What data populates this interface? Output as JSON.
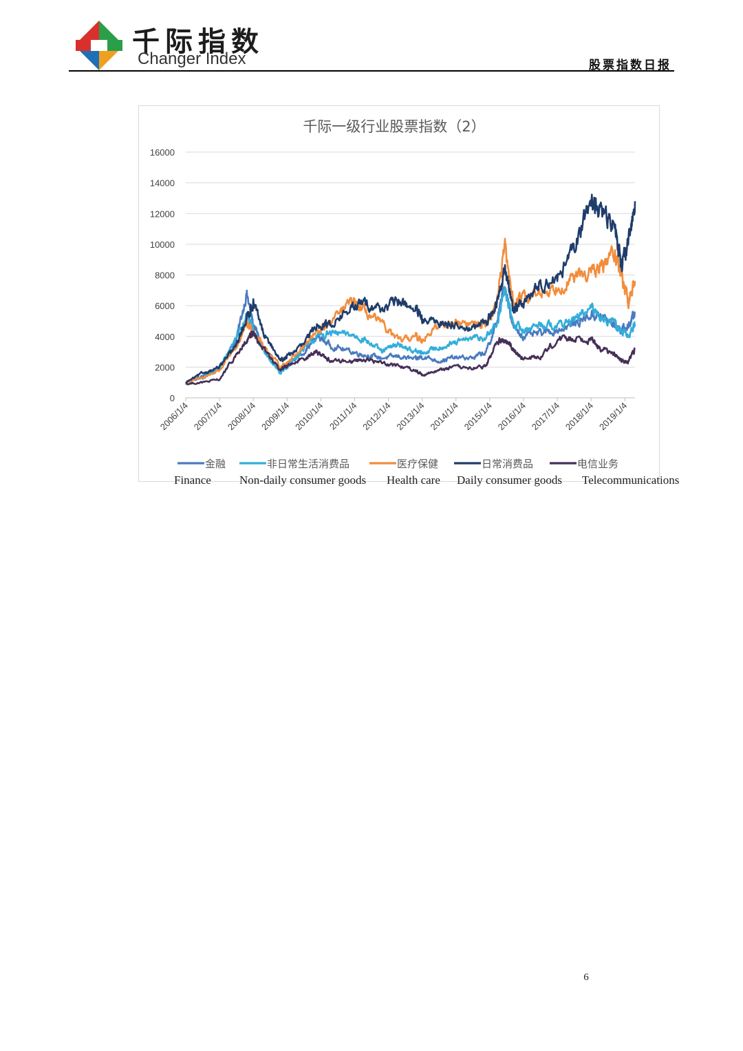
{
  "header": {
    "brand_cn": "千际指数",
    "brand_en": "Changer Index",
    "report_title": "股票指数日报",
    "logo_icon": "diamond-logo-icon",
    "logo_colors": [
      "#d9302c",
      "#2b9e4a",
      "#1f6fb5",
      "#f0a020"
    ]
  },
  "legend_en": [
    "Finance",
    "Non-daily consumer goods",
    "Health care",
    "Daily consumer goods",
    "Telecommunications"
  ],
  "page_number": "6",
  "chart_data": {
    "type": "line",
    "title": "千际一级行业股票指数（2）",
    "xlabel": "",
    "ylabel": "",
    "ylim": [
      0,
      16000
    ],
    "yticks": [
      0,
      2000,
      4000,
      6000,
      8000,
      10000,
      12000,
      14000,
      16000
    ],
    "x_start": 2006.0,
    "x_end": 2019.3,
    "x": [
      2006.0,
      2006.5,
      2007.0,
      2007.5,
      2007.8,
      2008.0,
      2008.3,
      2008.8,
      2009.0,
      2009.5,
      2009.9,
      2010.3,
      2010.9,
      2011.3,
      2011.8,
      2012.3,
      2012.8,
      2013.0,
      2013.5,
      2013.9,
      2014.5,
      2014.9,
      2015.2,
      2015.45,
      2015.7,
      2016.0,
      2016.5,
      2017.0,
      2017.5,
      2018.0,
      2018.3,
      2018.7,
      2018.9,
      2019.1,
      2019.3
    ],
    "x_tick_labels": [
      "2006/1/4",
      "2007/1/4",
      "2008/1/4",
      "2009/1/4",
      "2010/1/4",
      "2011/1/4",
      "2012/1/4",
      "2013/1/4",
      "2014/1/4",
      "2015/1/4",
      "2016/1/4",
      "2017/1/4",
      "2018/1/4",
      "2019/1/4"
    ],
    "x_tick_values": [
      2006.0,
      2007.0,
      2008.0,
      2009.0,
      2010.0,
      2011.0,
      2012.0,
      2013.0,
      2014.0,
      2015.0,
      2016.0,
      2017.0,
      2018.0,
      2019.0
    ],
    "series": [
      {
        "name": "金融",
        "color": "#4a7bc0",
        "values": [
          1000,
          1400,
          2000,
          3800,
          6800,
          4800,
          3200,
          1800,
          2200,
          3000,
          4000,
          3400,
          3000,
          2800,
          2600,
          2700,
          2500,
          2700,
          2400,
          2600,
          2600,
          3000,
          4800,
          7400,
          4600,
          4000,
          4200,
          4400,
          4800,
          5400,
          5300,
          4800,
          4400,
          4600,
          5600
        ]
      },
      {
        "name": "非日常生活消费品",
        "color": "#33aedb",
        "values": [
          1000,
          1300,
          1900,
          4000,
          5400,
          4600,
          3000,
          1600,
          2000,
          3200,
          4000,
          4200,
          4100,
          3800,
          3000,
          3500,
          3000,
          2900,
          3300,
          3500,
          3900,
          3900,
          4800,
          7000,
          4800,
          4400,
          4800,
          4700,
          5100,
          5800,
          5300,
          4800,
          4300,
          4000,
          4800
        ]
      },
      {
        "name": "医疗保健",
        "color": "#f28d3c",
        "values": [
          1000,
          1300,
          1800,
          3300,
          4800,
          4400,
          3400,
          2000,
          2300,
          3400,
          4300,
          4900,
          6300,
          5600,
          4800,
          3700,
          4000,
          3800,
          4700,
          4900,
          4800,
          4800,
          6200,
          9700,
          6200,
          6500,
          6800,
          7200,
          7800,
          8200,
          8400,
          9600,
          8000,
          6200,
          7600
        ]
      },
      {
        "name": "日常消费品",
        "color": "#1f3d6b",
        "values": [
          1000,
          1600,
          2000,
          3400,
          5200,
          6200,
          4200,
          2400,
          2700,
          3500,
          4800,
          4800,
          5800,
          6200,
          5800,
          6300,
          5800,
          5000,
          4900,
          4800,
          4500,
          5000,
          6000,
          8400,
          5800,
          6200,
          7400,
          7800,
          9600,
          13000,
          12000,
          11200,
          8800,
          9800,
          12800
        ]
      },
      {
        "name": "电信业务",
        "color": "#453058",
        "values": [
          900,
          1000,
          1200,
          2800,
          3600,
          4200,
          3200,
          1800,
          2100,
          2600,
          3000,
          2400,
          2400,
          2500,
          2300,
          2100,
          1800,
          1500,
          1800,
          2000,
          1900,
          2100,
          3600,
          3700,
          3200,
          2500,
          2700,
          3800,
          3900,
          3800,
          3200,
          2800,
          2400,
          2300,
          3200
        ]
      }
    ]
  }
}
